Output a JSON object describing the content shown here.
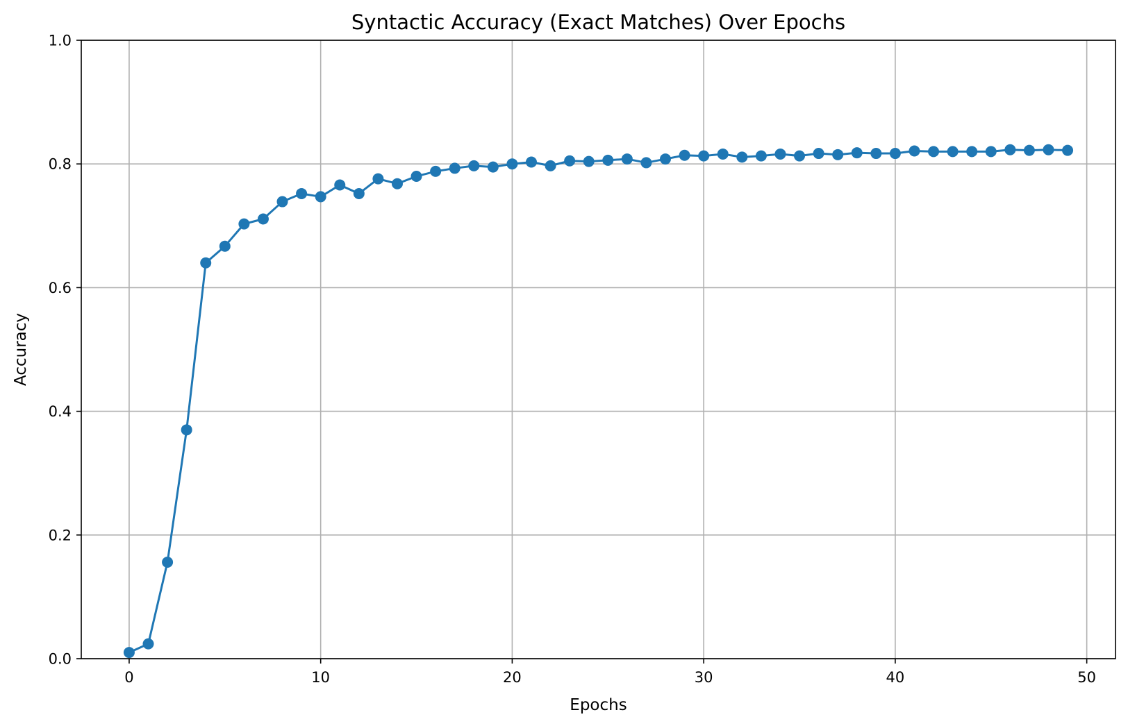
{
  "chart_data": {
    "type": "line",
    "title": "Syntactic Accuracy (Exact Matches) Over Epochs",
    "xlabel": "Epochs",
    "ylabel": "Accuracy",
    "xlim": [
      -2.5,
      51.5
    ],
    "ylim": [
      0.0,
      1.0
    ],
    "x_ticks": [
      0,
      10,
      20,
      30,
      40,
      50
    ],
    "x_tick_labels": [
      "0",
      "10",
      "20",
      "30",
      "40",
      "50"
    ],
    "y_ticks": [
      0.0,
      0.2,
      0.4,
      0.6,
      0.8,
      1.0
    ],
    "y_tick_labels": [
      "0.0",
      "0.2",
      "0.4",
      "0.6",
      "0.8",
      "1.0"
    ],
    "grid": true,
    "marker": "circle",
    "color": "#1f77b4",
    "x": [
      0,
      1,
      2,
      3,
      4,
      5,
      6,
      7,
      8,
      9,
      10,
      11,
      12,
      13,
      14,
      15,
      16,
      17,
      18,
      19,
      20,
      21,
      22,
      23,
      24,
      25,
      26,
      27,
      28,
      29,
      30,
      31,
      32,
      33,
      34,
      35,
      36,
      37,
      38,
      39,
      40,
      41,
      42,
      43,
      44,
      45,
      46,
      47,
      48,
      49
    ],
    "values": [
      0.01,
      0.024,
      0.156,
      0.37,
      0.64,
      0.667,
      0.703,
      0.711,
      0.739,
      0.752,
      0.747,
      0.766,
      0.752,
      0.776,
      0.768,
      0.78,
      0.788,
      0.793,
      0.797,
      0.795,
      0.8,
      0.803,
      0.797,
      0.805,
      0.804,
      0.806,
      0.808,
      0.802,
      0.808,
      0.814,
      0.813,
      0.816,
      0.811,
      0.813,
      0.816,
      0.813,
      0.817,
      0.815,
      0.818,
      0.817,
      0.817,
      0.821,
      0.82,
      0.82,
      0.82,
      0.82,
      0.823,
      0.822,
      0.823,
      0.822
    ]
  }
}
